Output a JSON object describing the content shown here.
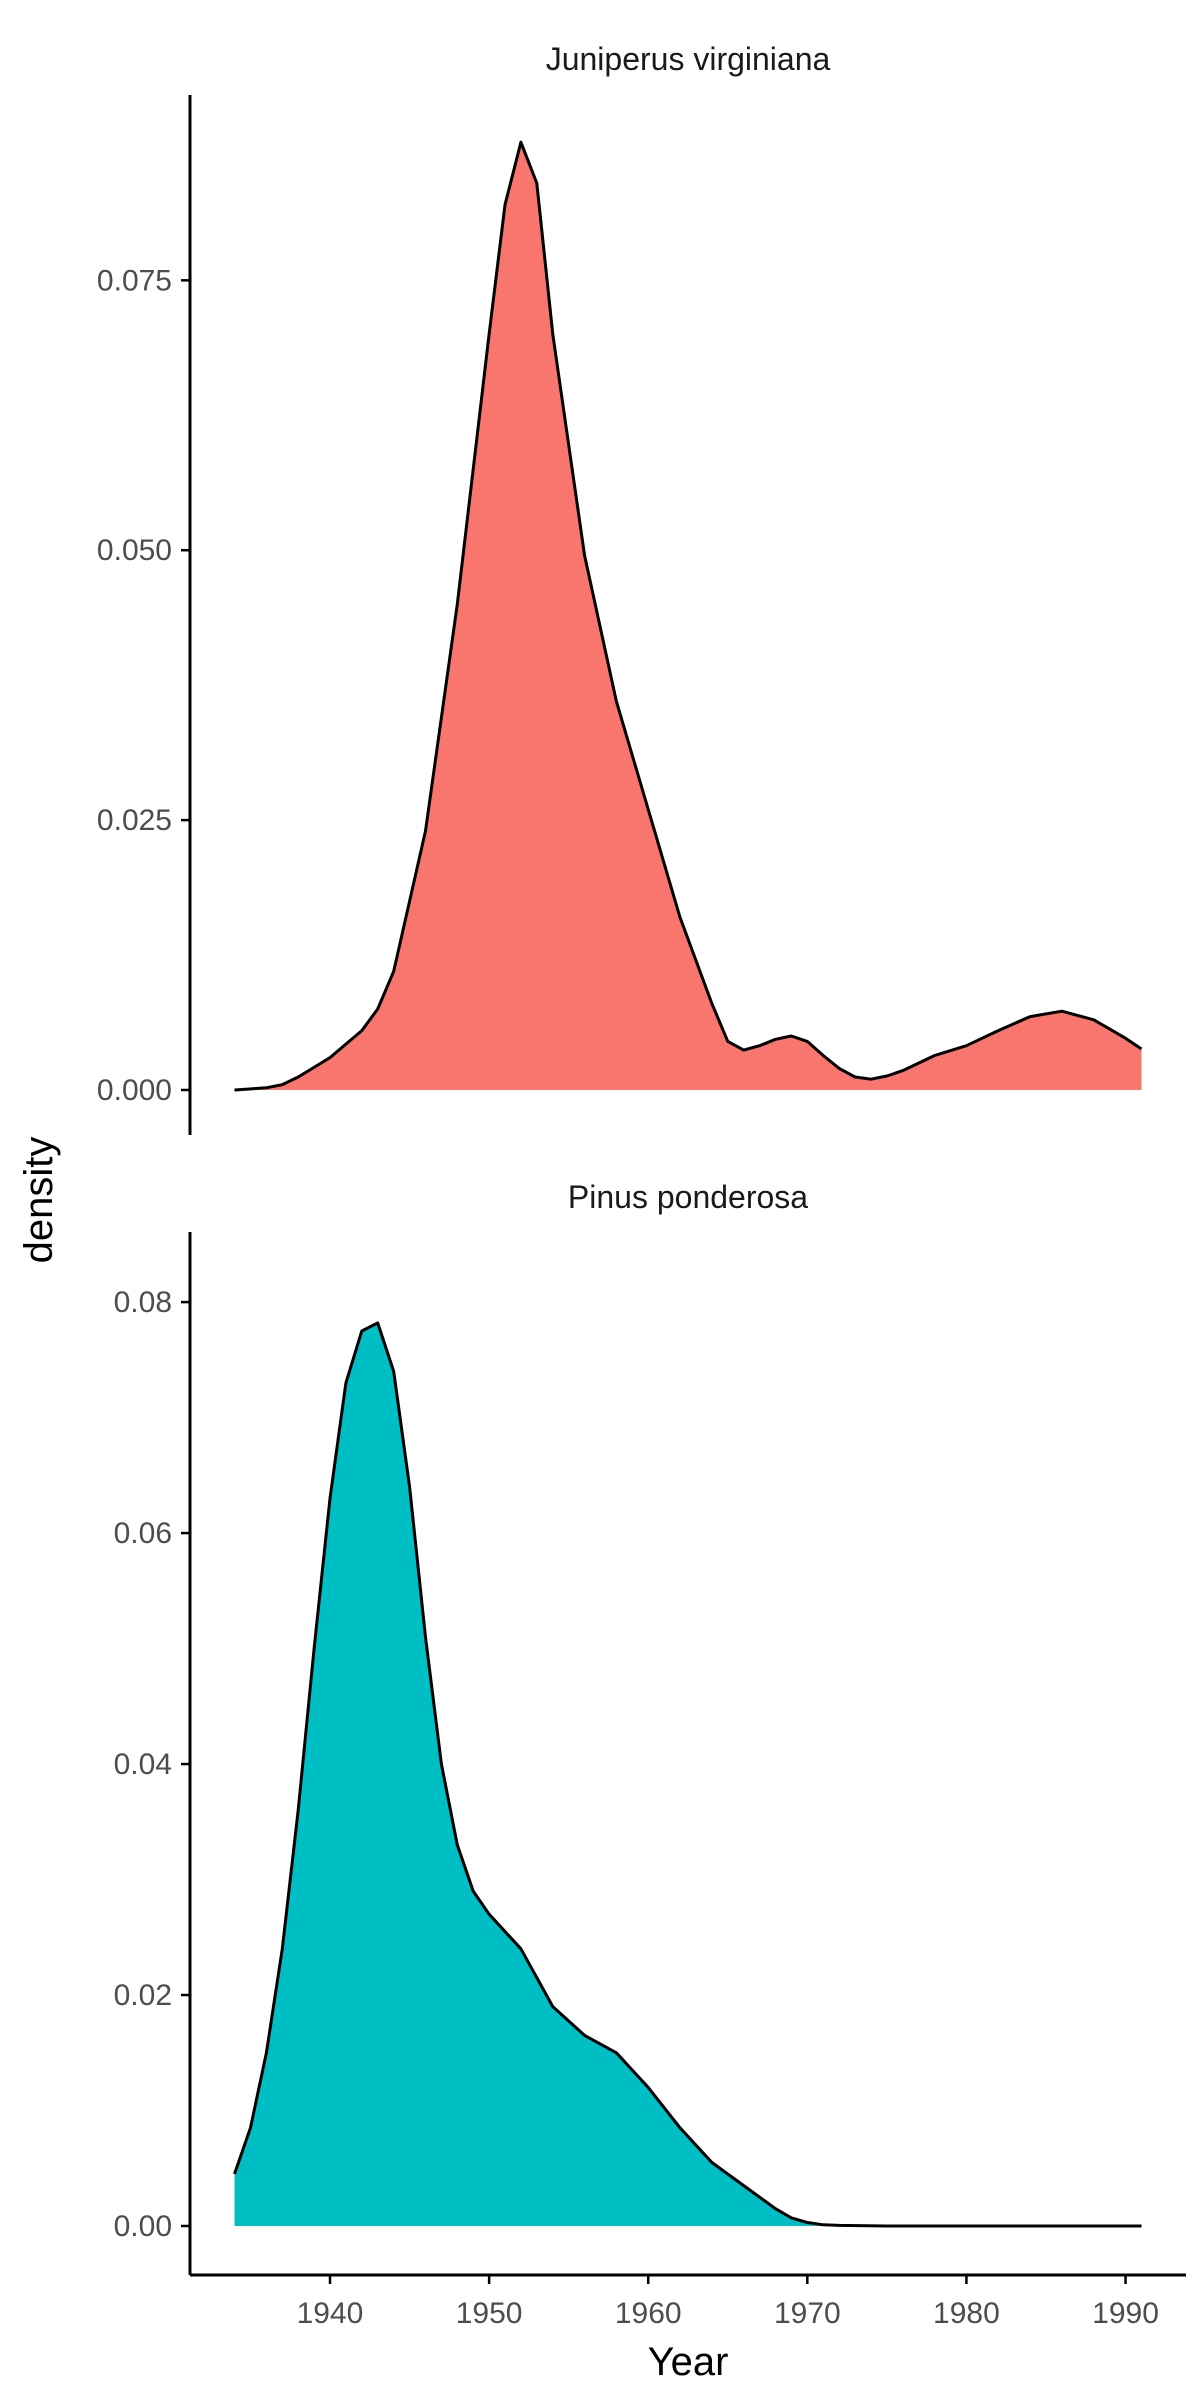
{
  "chart_data": {
    "type": "area",
    "facets": [
      {
        "title": "Juniperus virginiana",
        "fill": "#F8766D",
        "ylim": [
          0,
          0.088
        ],
        "yticks": [
          0.0,
          0.025,
          0.05,
          0.075
        ],
        "ytick_labels": [
          "0.000",
          "0.025",
          "0.050",
          "0.075"
        ],
        "x": [
          1934,
          1936,
          1937,
          1938,
          1940,
          1942,
          1943,
          1944,
          1946,
          1948,
          1950,
          1951,
          1952,
          1953,
          1954,
          1956,
          1958,
          1960,
          1962,
          1964,
          1965,
          1966,
          1967,
          1968,
          1969,
          1970,
          1971,
          1972,
          1973,
          1974,
          1975,
          1976,
          1978,
          1980,
          1982,
          1984,
          1986,
          1988,
          1990,
          1991
        ],
        "y": [
          0.0,
          0.0002,
          0.0005,
          0.0012,
          0.003,
          0.0055,
          0.0075,
          0.011,
          0.024,
          0.045,
          0.07,
          0.082,
          0.0878,
          0.084,
          0.07,
          0.0495,
          0.036,
          0.026,
          0.016,
          0.008,
          0.0045,
          0.0037,
          0.0041,
          0.0047,
          0.005,
          0.0045,
          0.0032,
          0.002,
          0.0012,
          0.001,
          0.0013,
          0.0018,
          0.0032,
          0.0041,
          0.0055,
          0.0068,
          0.0073,
          0.0065,
          0.0048,
          0.0038
        ]
      },
      {
        "title": "Pinus ponderosa",
        "fill": "#00BFC4",
        "ylim": [
          0,
          0.082
        ],
        "yticks": [
          0.0,
          0.02,
          0.04,
          0.06,
          0.08
        ],
        "ytick_labels": [
          "0.00",
          "0.02",
          "0.04",
          "0.06",
          "0.08"
        ],
        "x": [
          1934,
          1935,
          1936,
          1937,
          1938,
          1939,
          1940,
          1941,
          1942,
          1943,
          1944,
          1945,
          1946,
          1947,
          1948,
          1949,
          1950,
          1952,
          1954,
          1956,
          1958,
          1959,
          1960,
          1962,
          1964,
          1966,
          1968,
          1969,
          1970,
          1971,
          1972,
          1975,
          1980,
          1985,
          1991
        ],
        "y": [
          0.0045,
          0.0085,
          0.015,
          0.024,
          0.036,
          0.05,
          0.063,
          0.073,
          0.0775,
          0.0782,
          0.074,
          0.064,
          0.051,
          0.04,
          0.033,
          0.029,
          0.027,
          0.024,
          0.019,
          0.0165,
          0.015,
          0.0135,
          0.012,
          0.0085,
          0.0055,
          0.0035,
          0.0015,
          0.0007,
          0.0003,
          0.0001,
          5e-05,
          0.0,
          0.0,
          0.0,
          0.0
        ]
      }
    ],
    "x_axis": {
      "label": "Year",
      "xlim": [
        1931.2,
        1993.8
      ],
      "ticks": [
        1940,
        1950,
        1960,
        1970,
        1980,
        1990
      ],
      "tick_labels": [
        "1940",
        "1950",
        "1960",
        "1970",
        "1980",
        "1990"
      ]
    },
    "y_axis": {
      "label": "density"
    },
    "legend": "none",
    "grid": false
  }
}
